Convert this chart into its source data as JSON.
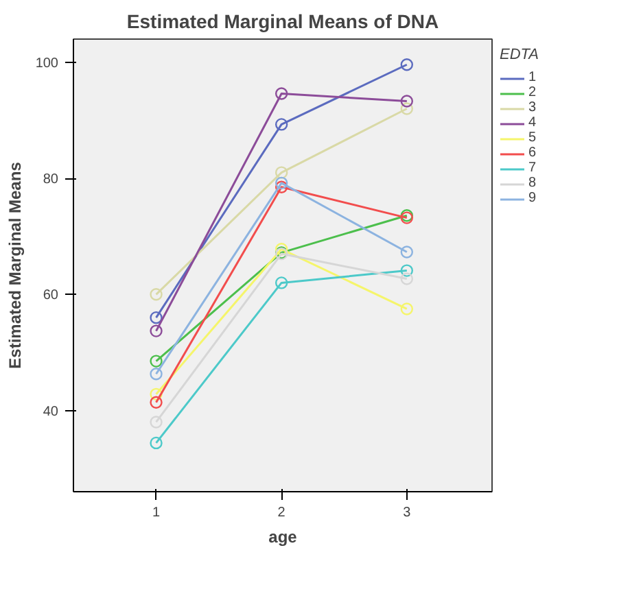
{
  "chart_data": {
    "type": "line",
    "title": "Estimated Marginal Means of DNA",
    "xlabel": "age",
    "ylabel": "Estimated Marginal Means",
    "legend_title": "EDTA",
    "x": [
      1,
      2,
      3
    ],
    "xlim": [
      0.34,
      3.68
    ],
    "xticks": [
      1,
      2,
      3
    ],
    "ylim": [
      26,
      104
    ],
    "yticks": [
      40,
      60,
      80,
      100
    ],
    "grid": false,
    "legend": "right",
    "marker": "circle",
    "series": [
      {
        "name": "1",
        "color": "#5b6bbf",
        "values": [
          56,
          89.3,
          99.6
        ]
      },
      {
        "name": "2",
        "color": "#4cbf4c",
        "values": [
          48.5,
          67.2,
          73.6
        ]
      },
      {
        "name": "3",
        "color": "#d9d9a6",
        "values": [
          60,
          81,
          92
        ]
      },
      {
        "name": "4",
        "color": "#8c4c99",
        "values": [
          53.7,
          94.6,
          93.3
        ]
      },
      {
        "name": "5",
        "color": "#f5f56b",
        "values": [
          42.8,
          67.8,
          57.5
        ]
      },
      {
        "name": "6",
        "color": "#f24d4d",
        "values": [
          41.4,
          78.5,
          73.2
        ]
      },
      {
        "name": "7",
        "color": "#4cc9c9",
        "values": [
          34.4,
          62,
          64.1
        ]
      },
      {
        "name": "8",
        "color": "#d6d6d6",
        "values": [
          38,
          67,
          62.7
        ]
      },
      {
        "name": "9",
        "color": "#8cb3e0",
        "values": [
          46.3,
          79.2,
          67.3
        ]
      }
    ]
  }
}
